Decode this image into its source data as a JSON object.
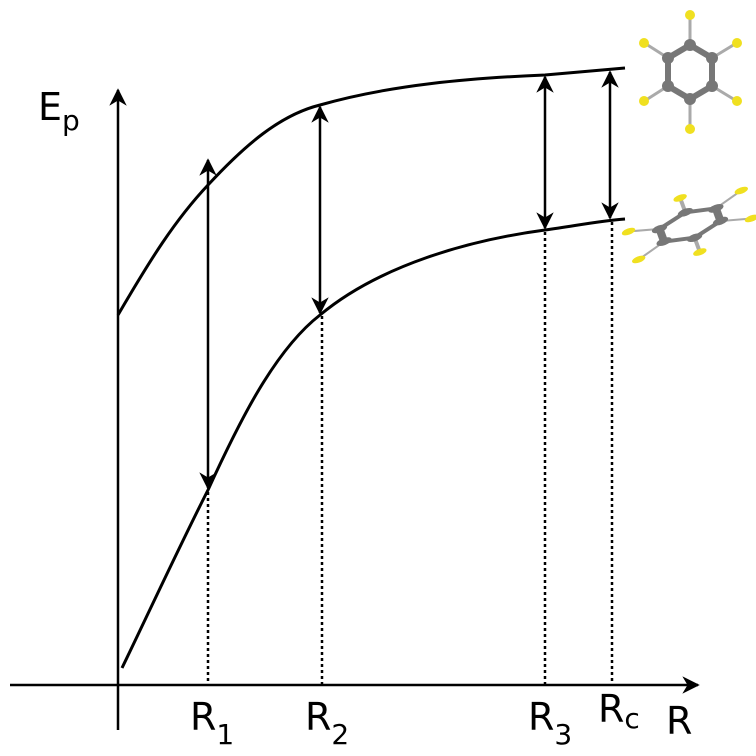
{
  "axes": {
    "y_label": {
      "main": "E",
      "sub": "p"
    },
    "x_label": "R"
  },
  "markers": [
    {
      "main": "R",
      "sub": "1"
    },
    {
      "main": "R",
      "sub": "2"
    },
    {
      "main": "R",
      "sub": "3"
    },
    {
      "main": "R",
      "sub": "c"
    }
  ]
}
